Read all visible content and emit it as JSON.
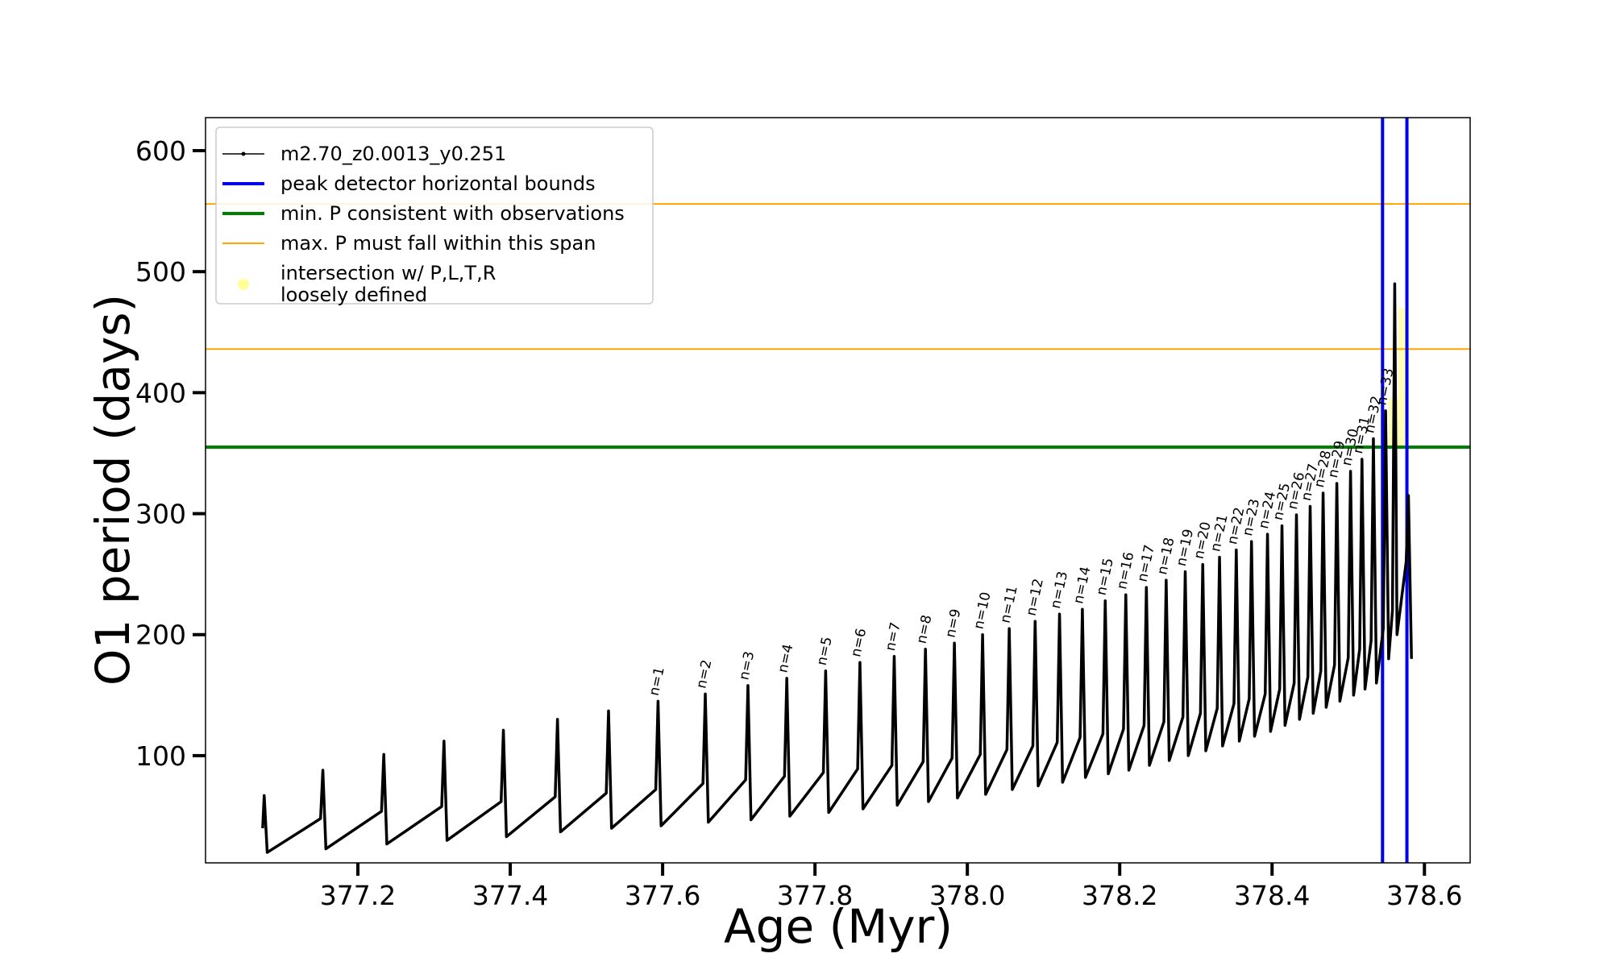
{
  "chart_data": {
    "type": "line",
    "xlabel": "Age (Myr)",
    "ylabel": "O1 period (days)",
    "xlim": [
      377.0,
      378.66
    ],
    "ylim": [
      11.4,
      627.3
    ],
    "xticks": [
      377.2,
      377.4,
      377.6,
      377.8,
      {
        "value": 378,
        "label": "378.0"
      },
      378.2,
      378.4,
      378.6
    ],
    "yticks": [
      100,
      200,
      300,
      400,
      500,
      600
    ],
    "legend": "upper left",
    "series": [
      {
        "name": "m2.70_z0.0013_y0.251",
        "color": "#000000",
        "x": [
          377.075,
          377.077,
          377.081,
          377.151,
          377.154,
          377.158,
          377.231,
          377.234,
          377.238,
          377.31,
          377.313,
          377.317,
          377.388,
          377.391,
          377.395,
          377.459,
          377.462,
          377.466,
          377.526,
          377.529,
          377.533,
          377.591,
          377.594,
          377.598,
          377.653,
          377.656,
          377.66,
          377.709,
          377.712,
          377.716,
          377.76,
          377.763,
          377.767,
          377.811,
          377.814,
          377.818,
          377.856,
          377.859,
          377.863,
          377.901,
          377.904,
          377.908,
          377.942,
          377.945,
          377.949,
          377.98,
          377.983,
          377.987,
          378.017,
          378.02,
          378.024,
          378.052,
          378.055,
          378.059,
          378.086,
          378.089,
          378.093,
          378.118,
          378.121,
          378.125,
          378.148,
          378.151,
          378.155,
          378.178,
          378.181,
          378.185,
          378.205,
          378.208,
          378.212,
          378.232,
          378.235,
          378.239,
          378.258,
          378.261,
          378.265,
          378.283,
          378.286,
          378.29,
          378.306,
          378.309,
          378.313,
          378.328,
          378.331,
          378.335,
          378.35,
          378.353,
          378.357,
          378.37,
          378.373,
          378.377,
          378.391,
          378.394,
          378.398,
          378.41,
          378.413,
          378.417,
          378.429,
          378.432,
          378.436,
          378.447,
          378.45,
          378.454,
          378.464,
          378.467,
          378.471,
          378.482,
          378.485,
          378.489,
          378.5,
          378.503,
          378.507,
          378.515,
          378.518,
          378.522,
          378.53,
          378.533,
          378.537,
          378.546,
          378.549,
          378.553,
          378.558,
          378.561,
          378.564,
          378.576,
          378.579,
          378.583
        ],
        "values": [
          40,
          67,
          20,
          48,
          88,
          23,
          54,
          101,
          27,
          58,
          112,
          30,
          62,
          121,
          33,
          66,
          130,
          37,
          69,
          137,
          40,
          72,
          145,
          42,
          77,
          151,
          45,
          80,
          158,
          47,
          83,
          164,
          50,
          86,
          170,
          53,
          89,
          177,
          56,
          92,
          182,
          59,
          95,
          188,
          62,
          98,
          193,
          65,
          101,
          200,
          68,
          105,
          205,
          72,
          108,
          211,
          75,
          111,
          217,
          78,
          115,
          221,
          82,
          118,
          228,
          85,
          122,
          233,
          88,
          125,
          239,
          92,
          128,
          245,
          96,
          132,
          252,
          100,
          135,
          258,
          104,
          139,
          264,
          108,
          143,
          270,
          112,
          147,
          277,
          116,
          151,
          283,
          120,
          155,
          290,
          125,
          160,
          299,
          130,
          165,
          306,
          135,
          170,
          317,
          140,
          175,
          325,
          145,
          181,
          335,
          150,
          188,
          345,
          155,
          195,
          362,
          160,
          205,
          385,
          180,
          220,
          490,
          200,
          260,
          315,
          180
        ]
      }
    ],
    "vlines": {
      "name": "peak detector horizontal bounds",
      "color": "#0000ee",
      "values": [
        378.545,
        378.577
      ]
    },
    "hlines": [
      {
        "name": "min. P consistent with observations",
        "color": "#008000",
        "values": [
          355
        ]
      },
      {
        "name": "max. P must fall within this span",
        "color": "#ffa500",
        "values": [
          436,
          556
        ]
      }
    ],
    "highlight": {
      "name": "intersection w/ P,L,T,R\nloosely defined",
      "color": "#ffff99",
      "regions": [
        {
          "x": [
            378.553,
            378.566
          ],
          "y": [
            355,
            395
          ]
        },
        {
          "x": [
            378.566,
            378.578
          ],
          "y": [
            355,
            470
          ]
        }
      ]
    },
    "annotations": [
      {
        "text": "n=1",
        "x": 377.594,
        "y": 145
      },
      {
        "text": "n=2",
        "x": 377.656,
        "y": 151
      },
      {
        "text": "n=3",
        "x": 377.712,
        "y": 158
      },
      {
        "text": "n=4",
        "x": 377.763,
        "y": 164
      },
      {
        "text": "n=5",
        "x": 377.814,
        "y": 170
      },
      {
        "text": "n=6",
        "x": 377.859,
        "y": 177
      },
      {
        "text": "n=7",
        "x": 377.904,
        "y": 182
      },
      {
        "text": "n=8",
        "x": 377.945,
        "y": 188
      },
      {
        "text": "n=9",
        "x": 377.983,
        "y": 193
      },
      {
        "text": "n=10",
        "x": 378.02,
        "y": 200
      },
      {
        "text": "n=11",
        "x": 378.055,
        "y": 205
      },
      {
        "text": "n=12",
        "x": 378.089,
        "y": 211
      },
      {
        "text": "n=13",
        "x": 378.121,
        "y": 217
      },
      {
        "text": "n=14",
        "x": 378.151,
        "y": 221
      },
      {
        "text": "n=15",
        "x": 378.181,
        "y": 228
      },
      {
        "text": "n=16",
        "x": 378.208,
        "y": 233
      },
      {
        "text": "n=17",
        "x": 378.235,
        "y": 239
      },
      {
        "text": "n=18",
        "x": 378.261,
        "y": 245
      },
      {
        "text": "n=19",
        "x": 378.286,
        "y": 252
      },
      {
        "text": "n=20",
        "x": 378.309,
        "y": 258
      },
      {
        "text": "n=21",
        "x": 378.331,
        "y": 264
      },
      {
        "text": "n=22",
        "x": 378.353,
        "y": 270
      },
      {
        "text": "n=23",
        "x": 378.373,
        "y": 277
      },
      {
        "text": "n=24",
        "x": 378.394,
        "y": 283
      },
      {
        "text": "n=25",
        "x": 378.413,
        "y": 290
      },
      {
        "text": "n=26",
        "x": 378.432,
        "y": 299
      },
      {
        "text": "n=27",
        "x": 378.45,
        "y": 306
      },
      {
        "text": "n=28",
        "x": 378.467,
        "y": 317
      },
      {
        "text": "n=29",
        "x": 378.485,
        "y": 325
      },
      {
        "text": "n=30",
        "x": 378.503,
        "y": 335
      },
      {
        "text": "n=31",
        "x": 378.518,
        "y": 345
      },
      {
        "text": "n=32",
        "x": 378.533,
        "y": 362
      },
      {
        "text": "n=33",
        "x": 378.549,
        "y": 385
      }
    ]
  }
}
